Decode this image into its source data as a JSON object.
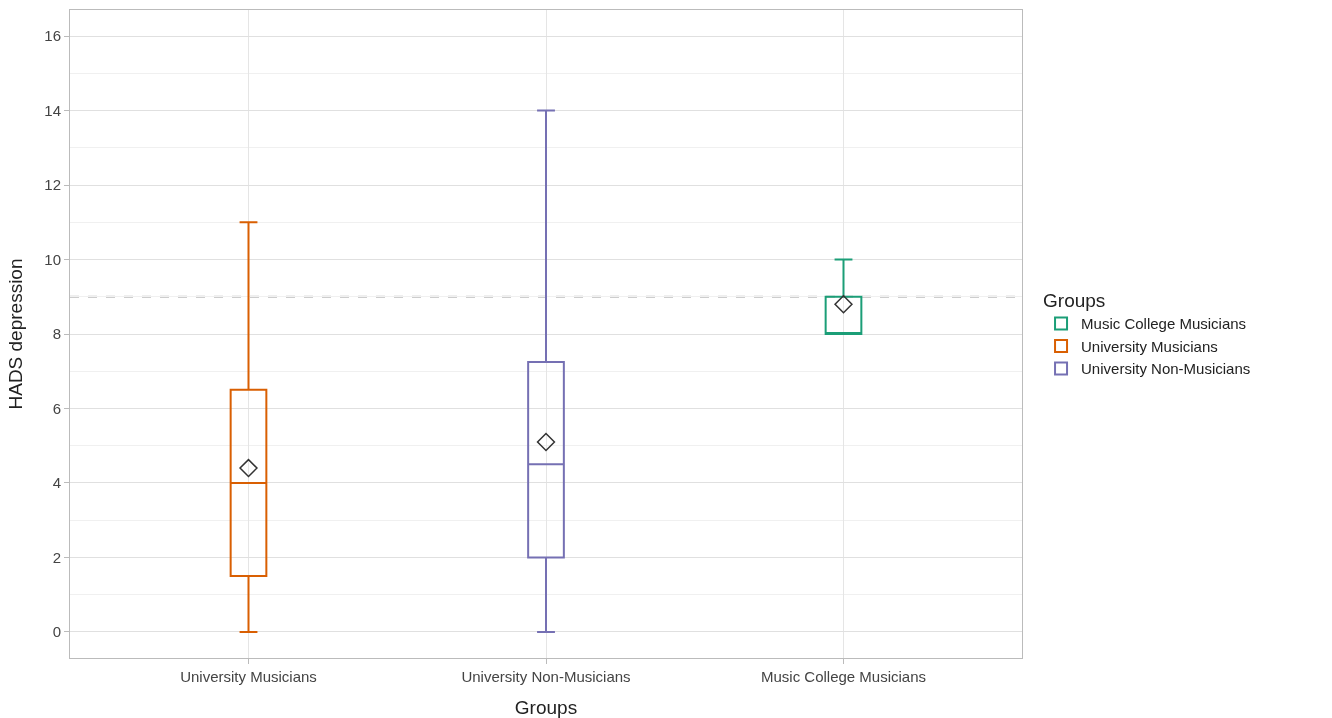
{
  "chart_data": {
    "type": "box",
    "xlabel": "Groups",
    "ylabel": "HADS depression",
    "legend_title": "Groups",
    "categories": [
      "University Musicians",
      "University Non-Musicians",
      "Music College Musicians"
    ],
    "series": [
      {
        "name": "Music College Musicians",
        "color": "#1b9e77",
        "boxes": [
          null,
          null,
          {
            "low": 8,
            "q1": 8,
            "median": 8,
            "q3": 9,
            "high": 10,
            "mean": 8.8
          }
        ]
      },
      {
        "name": "University Musicians",
        "color": "#d95f02",
        "boxes": [
          {
            "low": 0,
            "q1": 1.5,
            "median": 4,
            "q3": 6.5,
            "high": 11,
            "mean": 4.4
          },
          null,
          null
        ]
      },
      {
        "name": "University Non-Musicians",
        "color": "#7570b3",
        "boxes": [
          null,
          {
            "low": 0,
            "q1": 2,
            "median": 4.5,
            "q3": 7.25,
            "high": 14,
            "mean": 5.1
          },
          null
        ]
      }
    ],
    "ylim": [
      -0.7,
      16.7
    ],
    "yticks": [
      0,
      2,
      4,
      6,
      8,
      10,
      12,
      14,
      16
    ],
    "ref_lines": [
      {
        "axis": "y",
        "value": 9,
        "color": "#bdbdbd",
        "line_style": "dashed"
      }
    ],
    "grid": true,
    "legend": "right",
    "marker": "diamond"
  }
}
